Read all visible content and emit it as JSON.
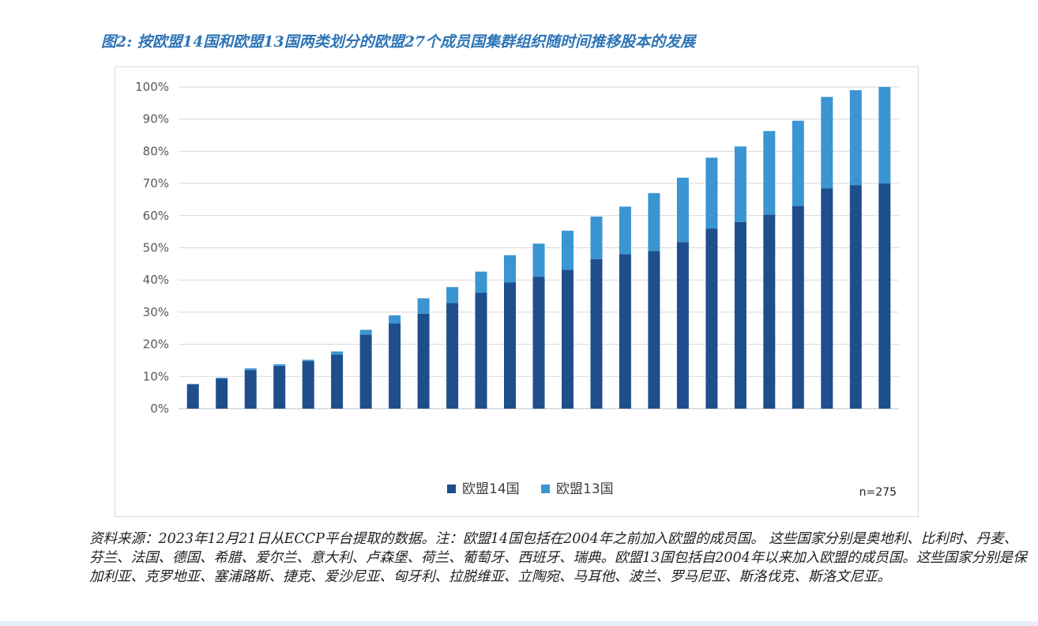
{
  "chart_data": {
    "type": "bar",
    "stacked": true,
    "title": "图2: 按欧盟14国和欧盟13国两类划分的欧盟27个成员国集群组织随时间推移股本的发展",
    "xlabel": "",
    "ylabel": "",
    "ylim": [
      0,
      100
    ],
    "yticks": [
      "0%",
      "10%",
      "20%",
      "30%",
      "40%",
      "50%",
      "60%",
      "70%",
      "80%",
      "90%",
      "100%"
    ],
    "grid": true,
    "legend_position": "bottom",
    "categories": [
      "",
      "",
      "",
      "",
      "",
      "",
      "",
      "",
      "",
      "",
      "",
      "",
      "",
      "",
      "",
      "",
      "",
      "",
      "",
      "",
      "",
      "",
      "",
      "",
      ""
    ],
    "series": [
      {
        "name": "欧盟14国",
        "color": "#1f4e8c",
        "values": [
          7.5,
          9.3,
          12.0,
          13.3,
          14.8,
          16.8,
          23.0,
          26.5,
          29.5,
          32.8,
          36.0,
          39.2,
          41.0,
          43.2,
          46.5,
          48.0,
          49.0,
          51.8,
          56.0,
          58.0,
          60.3,
          63.0,
          68.5,
          69.5,
          70.0
        ]
      },
      {
        "name": "欧盟13国",
        "color": "#3a95d2",
        "values": [
          0.2,
          0.3,
          0.5,
          0.5,
          0.4,
          1.0,
          1.5,
          2.5,
          4.8,
          5.0,
          6.6,
          8.5,
          10.3,
          12.1,
          13.2,
          14.8,
          18.0,
          20.0,
          22.0,
          23.5,
          26.0,
          26.5,
          28.4,
          29.5,
          30.0
        ]
      }
    ],
    "annotation": "n=275"
  },
  "source_note": "资料来源：2023年12月21日从ECCP平台提取的数据。注：欧盟14国包括在2004年之前加入欧盟的成员国。 这些国家分别是奥地利、比利时、丹麦、芬兰、法国、德国、希腊、爱尔兰、意大利、卢森堡、荷兰、葡萄牙、西班牙、瑞典。欧盟13国包括自2004年以来加入欧盟的成员国。这些国家分别是保加利亚、克罗地亚、塞浦路斯、捷克、爱沙尼亚、匈牙利、拉脱维亚、立陶宛、马耳他、波兰、罗马尼亚、斯洛伐克、斯洛文尼亚。"
}
